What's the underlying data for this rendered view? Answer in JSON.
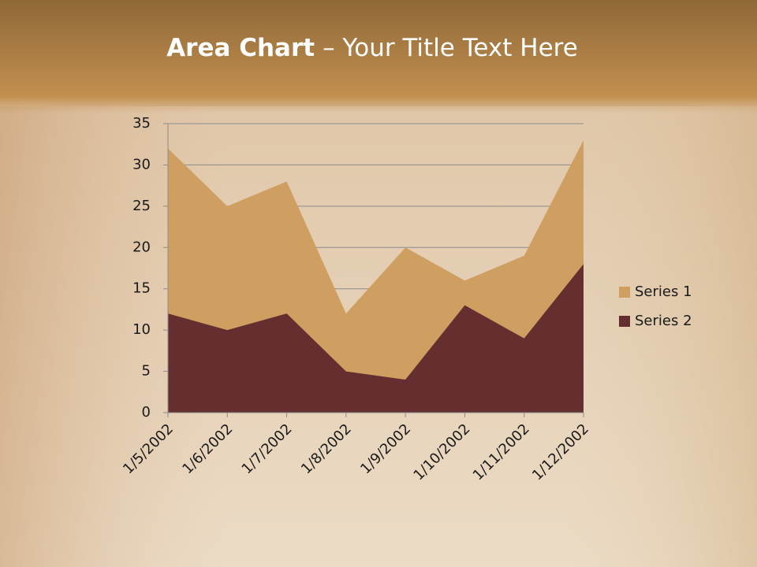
{
  "chart_data": {
    "type": "area",
    "title": [
      "Area Chart",
      "– Your Title Text Here"
    ],
    "categories": [
      "1/5/2002",
      "1/6/2002",
      "1/7/2002",
      "1/8/2002",
      "1/9/2002",
      "1/10/2002",
      "1/11/2002",
      "1/12/2002"
    ],
    "series": [
      {
        "name": "Series 1",
        "color": "#cf9f62",
        "values": [
          32,
          25,
          28,
          12,
          20,
          16,
          19,
          33
        ]
      },
      {
        "name": "Series 2",
        "color": "#652f30",
        "values": [
          12,
          10,
          12,
          5,
          4,
          13,
          9,
          18
        ]
      }
    ],
    "ylim": [
      0,
      35
    ],
    "yticks": [
      0,
      5,
      10,
      15,
      20,
      25,
      30,
      35
    ],
    "grid": true,
    "legend": "right"
  }
}
